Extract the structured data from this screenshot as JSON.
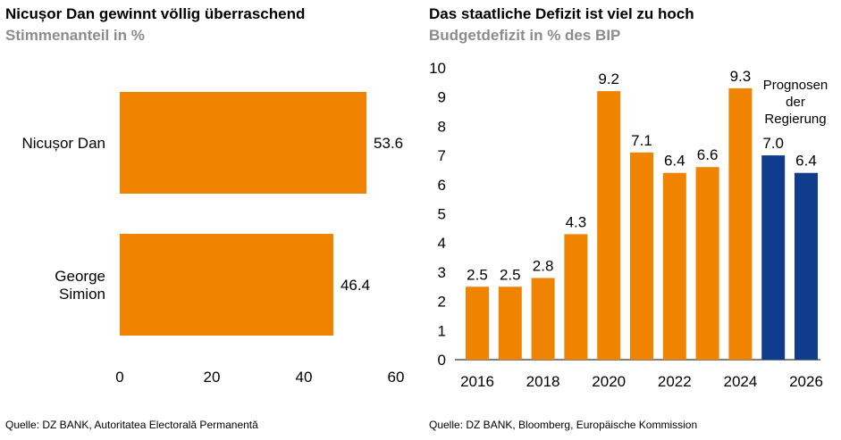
{
  "left": {
    "title": "Nicușor Dan gewinnt völlig überraschend",
    "subtitle": "Stimmenanteil in %",
    "source": "Quelle: DZ BANK, Autoritatea Electorală Permanentă"
  },
  "right": {
    "title": "Das staatliche Defizit ist viel zu hoch",
    "subtitle": "Budgetdefizit in % des BIP",
    "source": "Quelle: DZ BANK, Bloomberg, Europäische Kommission",
    "annotation": "Prognosen der Regierung"
  },
  "chart_data": [
    {
      "type": "bar",
      "orientation": "horizontal",
      "title": "Nicușor Dan gewinnt völlig überraschend",
      "subtitle": "Stimmenanteil in %",
      "categories": [
        "Nicușor Dan",
        "George Simion"
      ],
      "values": [
        53.6,
        46.4
      ],
      "value_labels": [
        "53.6",
        "46.4"
      ],
      "xlim": [
        0,
        60
      ],
      "xticks": [
        0,
        20,
        40,
        60
      ],
      "color": "#f08300",
      "grid": false
    },
    {
      "type": "bar",
      "title": "Das staatliche Defizit ist viel zu hoch",
      "subtitle": "Budgetdefizit in % des BIP",
      "categories": [
        "2016",
        "2017",
        "2018",
        "2019",
        "2020",
        "2021",
        "2022",
        "2023",
        "2024",
        "2025",
        "2026"
      ],
      "values": [
        2.5,
        2.5,
        2.8,
        4.3,
        9.2,
        7.1,
        6.4,
        6.6,
        9.3,
        7.0,
        6.4
      ],
      "value_labels": [
        "2.5",
        "2.5",
        "2.8",
        "4.3",
        "9.2",
        "7.1",
        "6.4",
        "6.6",
        "9.3",
        "7.0",
        "6.4"
      ],
      "forecast": [
        false,
        false,
        false,
        false,
        false,
        false,
        false,
        false,
        false,
        true,
        true
      ],
      "xticks": [
        "2016",
        "2018",
        "2020",
        "2022",
        "2024",
        "2026"
      ],
      "ylim": [
        0,
        10
      ],
      "yticks": [
        0,
        1,
        2,
        3,
        4,
        5,
        6,
        7,
        8,
        9,
        10
      ],
      "annotation": "Prognosen der Regierung",
      "colors": {
        "actual": "#f08300",
        "forecast": "#0f3c8c"
      },
      "grid": false
    }
  ]
}
